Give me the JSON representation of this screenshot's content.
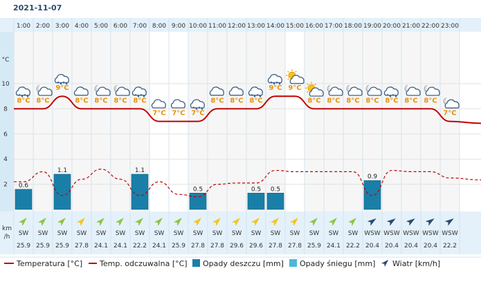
{
  "date": "2021-11-07",
  "temp_unit_label": "°C",
  "wind_unit_label": [
    "km",
    "/h"
  ],
  "legend": {
    "temperature": "Temperatura [°C]",
    "feels_like": "Temp. odczuwalna [°C]",
    "rain": "Opady deszczu [mm]",
    "snow": "Opady śniegu [mm]",
    "wind": "Wiatr [km/h]"
  },
  "colors": {
    "temperature": "#c00000",
    "feels_like": "#c00000",
    "rain": "#1a7fa8",
    "snow": "#4db8d6",
    "temp_label": "#e8900a",
    "wind_arrow": "#8fc63f",
    "wind_arrow_strong": "#f5c518"
  },
  "chart_data": {
    "type": "line",
    "y_ticks": [
      2,
      4,
      6,
      8,
      10
    ],
    "ylim": [
      0,
      12
    ],
    "x": [
      "1:00",
      "2:00",
      "3:00",
      "4:00",
      "5:00",
      "6:00",
      "7:00",
      "8:00",
      "9:00",
      "10:00",
      "11:00",
      "12:00",
      "13:00",
      "14:00",
      "15:00",
      "16:00",
      "17:00",
      "18:00",
      "19:00",
      "20:00",
      "21:00",
      "22:00",
      "23:00"
    ],
    "series": [
      {
        "name": "Temperatura [°C]",
        "values": [
          8,
          8,
          9,
          8,
          8,
          8,
          8,
          7,
          7,
          7,
          8,
          8,
          8,
          9,
          9,
          8,
          8,
          8,
          8,
          8,
          8,
          8,
          7
        ]
      },
      {
        "name": "Temp. odczuwalna [°C]",
        "values": [
          2.2,
          3,
          1.1,
          2.4,
          3.2,
          2.4,
          1.1,
          2.2,
          1.2,
          1.0,
          2,
          2.1,
          2.1,
          3.1,
          3.0,
          3.0,
          3.0,
          3.0,
          1.1,
          3.1,
          3.0,
          3.0,
          2.5
        ]
      },
      {
        "name": "Opady deszczu [mm]",
        "values": [
          1.6,
          0,
          2.8,
          0,
          0,
          0,
          2.8,
          0,
          0,
          1.3,
          0,
          0,
          1.3,
          1.3,
          0,
          0,
          0,
          0,
          2.3,
          0,
          0,
          0,
          0
        ]
      }
    ],
    "temp_labels": [
      "8°C",
      "8°C",
      "9°C",
      "8°C",
      "8°C",
      "8°C",
      "8°C",
      "7°C",
      "7°C",
      "7°C",
      "8°C",
      "8°C",
      "8°C",
      "9°C",
      "9°C",
      "8°C",
      "8°C",
      "8°C",
      "8°C",
      "8°C",
      "8°C",
      "8°C",
      "7°C"
    ],
    "rain_labels": [
      "0.6",
      "",
      "1.1",
      "",
      "",
      "",
      "1.1",
      "",
      "",
      "0.5",
      "",
      "",
      "0.5",
      "0.5",
      "",
      "",
      "",
      "",
      "0.9",
      "",
      "",
      "",
      ""
    ],
    "weather_icons": [
      "rain-cloud",
      "cloudy-night",
      "rain-cloud",
      "cloud",
      "cloudy-night",
      "cloudy-night",
      "rain-cloud",
      "cloud",
      "cloud",
      "rain-cloud",
      "cloud",
      "cloud",
      "rain-cloud",
      "rain-cloud",
      "sun-cloud",
      "sun-cloud",
      "cloudy-night",
      "cloudy-night",
      "cloudy-night",
      "rain-cloud",
      "cloudy-night",
      "cloudy-night",
      "cloudy-night"
    ],
    "wind_dir": [
      "SW",
      "SW",
      "SW",
      "SW",
      "SW",
      "SW",
      "SW",
      "SW",
      "SW",
      "SW",
      "SW",
      "SW",
      "SW",
      "SW",
      "SW",
      "SW",
      "SW",
      "SW",
      "WSW",
      "WSW",
      "WSW",
      "WSW",
      "WSW"
    ],
    "wind_speed": [
      "25.9",
      "25.9",
      "25.9",
      "27.8",
      "24.1",
      "24.1",
      "22.2",
      "24.1",
      "25.9",
      "27.8",
      "27.8",
      "29.6",
      "29.6",
      "27.8",
      "27.8",
      "25.9",
      "24.1",
      "22.2",
      "20.4",
      "20.4",
      "20.4",
      "20.4",
      "22.2"
    ],
    "wind_strong": [
      false,
      false,
      false,
      true,
      false,
      false,
      false,
      false,
      false,
      true,
      true,
      true,
      true,
      true,
      true,
      false,
      false,
      false,
      false,
      false,
      false,
      false,
      false
    ]
  }
}
